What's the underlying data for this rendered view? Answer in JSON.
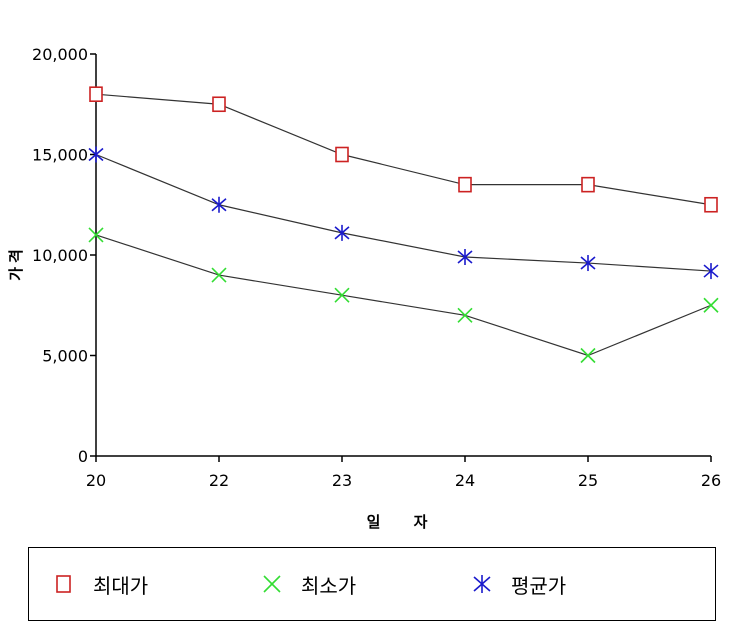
{
  "chart_data": {
    "type": "line",
    "categories": [
      "20",
      "22",
      "23",
      "24",
      "25",
      "26"
    ],
    "series": [
      {
        "name": "최대가",
        "marker": "square",
        "values": [
          18000,
          17500,
          15000,
          13500,
          13500,
          12500
        ]
      },
      {
        "name": "최소가",
        "marker": "x",
        "values": [
          11000,
          9000,
          8000,
          7000,
          5000,
          7500
        ]
      },
      {
        "name": "평균가",
        "marker": "star",
        "values": [
          15000,
          12500,
          11100,
          9900,
          9600,
          9200
        ]
      }
    ],
    "xlabel": "일 자",
    "ylabel": "가격",
    "ylim": [
      0,
      20000
    ],
    "yticks": [
      0,
      5000,
      10000,
      15000,
      20000
    ],
    "ytick_labels": [
      "0",
      "5,000",
      "10,000",
      "15,000",
      "20,000"
    ],
    "grid": false,
    "legend_position": "bottom"
  },
  "colors": {
    "square": "#cc2222",
    "x": "#33dd33",
    "star": "#1a1acc",
    "line": "#333333"
  }
}
